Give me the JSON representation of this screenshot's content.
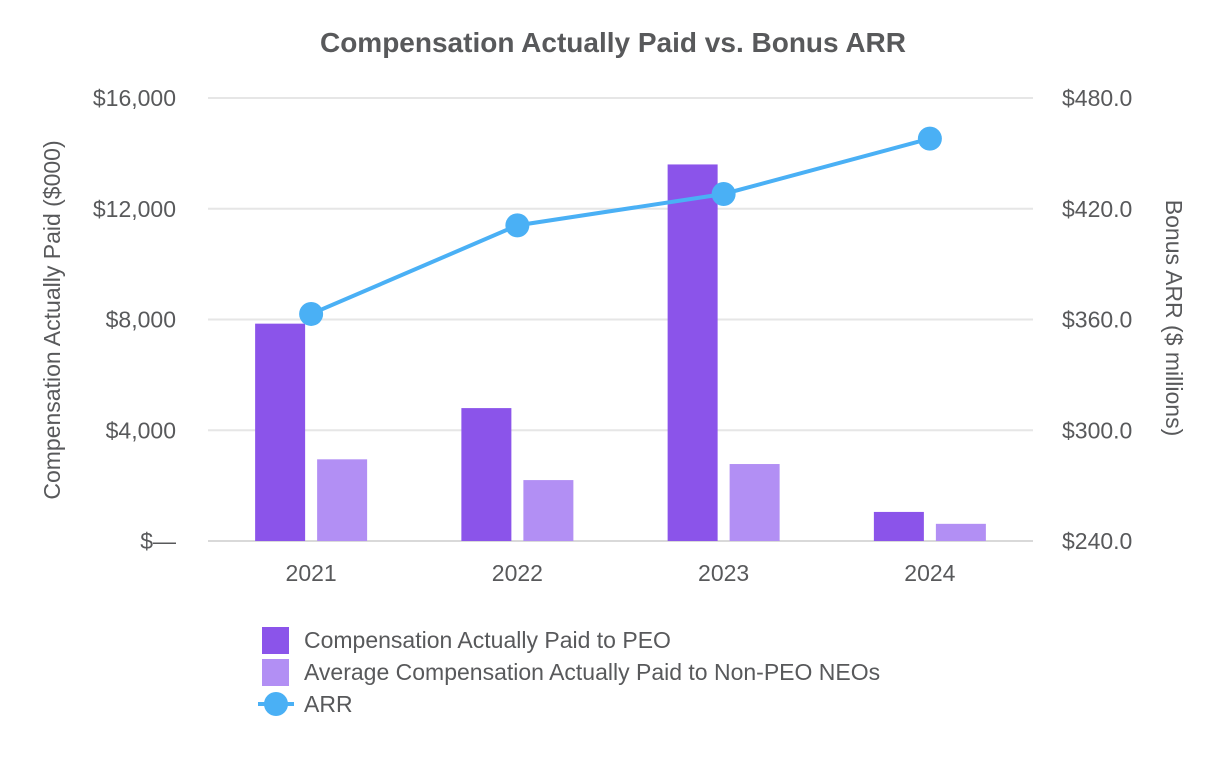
{
  "chart_data": {
    "type": "bar",
    "title": "Compensation Actually Paid vs. Bonus ARR",
    "categories": [
      "2021",
      "2022",
      "2023",
      "2024"
    ],
    "ylabel": "Compensation Actually Paid ($000)",
    "y2label": "Bonus ARR ($ millions)",
    "ylim": [
      0,
      16000
    ],
    "y2lim": [
      240,
      480
    ],
    "yticks": [
      {
        "value": 0,
        "label": "$—"
      },
      {
        "value": 4000,
        "label": "$4,000"
      },
      {
        "value": 8000,
        "label": "$8,000"
      },
      {
        "value": 12000,
        "label": "$12,000"
      },
      {
        "value": 16000,
        "label": "$16,000"
      }
    ],
    "y2ticks": [
      {
        "value": 240,
        "label": "$240.0"
      },
      {
        "value": 300,
        "label": "$300.0"
      },
      {
        "value": 360,
        "label": "$360.0"
      },
      {
        "value": 420,
        "label": "$420.0"
      },
      {
        "value": 480,
        "label": "$480.0"
      }
    ],
    "grid": true,
    "legend_position": "bottom",
    "series": [
      {
        "name": "Compensation Actually Paid to PEO",
        "type": "bar",
        "axis": "left",
        "color": "#8b54ea",
        "values": [
          7850,
          4800,
          13600,
          1050
        ]
      },
      {
        "name": "Average Compensation Actually Paid to Non-PEO NEOs",
        "type": "bar",
        "axis": "left",
        "color": "#b28ff4",
        "values": [
          2950,
          2200,
          2780,
          620
        ]
      },
      {
        "name": "ARR",
        "type": "line",
        "axis": "right",
        "color": "#4ab0f5",
        "values": [
          363,
          411,
          428,
          458
        ]
      }
    ]
  }
}
